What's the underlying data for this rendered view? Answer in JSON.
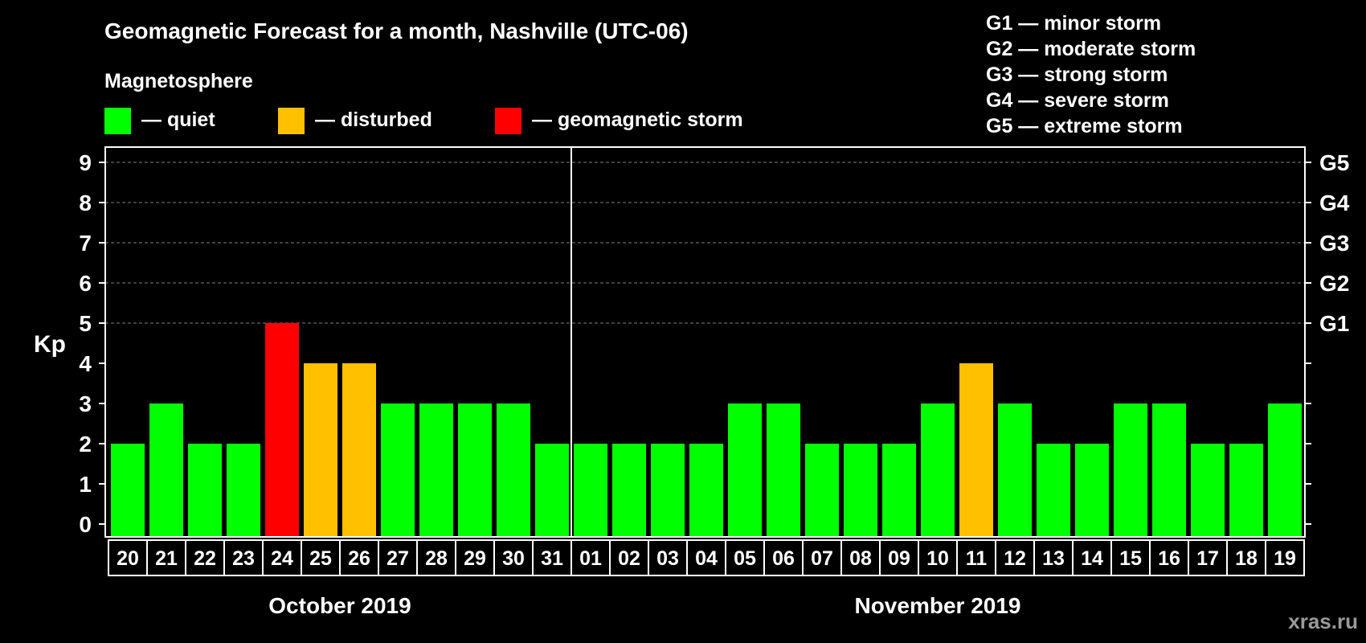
{
  "chart_data": {
    "type": "bar",
    "title": "Geomagnetic Forecast for a month, Nashville (UTC-06)",
    "legend": {
      "heading": "Magnetosphere",
      "placement": "top-left",
      "items": [
        {
          "label": "— quiet",
          "color": "#00ff00"
        },
        {
          "label": "— disturbed",
          "color": "#ffc000"
        },
        {
          "label": "— geomagnetic storm",
          "color": "#ff0000"
        }
      ]
    },
    "storm_scale": [
      "G1 — minor storm",
      "G2 — moderate storm",
      "G3 — strong storm",
      "G4 — severe storm",
      "G5 — extreme storm"
    ],
    "ylabel": "Kp",
    "ylim": [
      0,
      9
    ],
    "yticks": [
      "0",
      "1",
      "2",
      "3",
      "4",
      "5",
      "6",
      "7",
      "8",
      "9"
    ],
    "right_ticks": [
      {
        "value": 5,
        "label": "G1"
      },
      {
        "value": 6,
        "label": "G2"
      },
      {
        "value": 7,
        "label": "G3"
      },
      {
        "value": 8,
        "label": "G4"
      },
      {
        "value": 9,
        "label": "G5"
      }
    ],
    "grid": "dashed at 5–9",
    "categories": [
      "20",
      "21",
      "22",
      "23",
      "24",
      "25",
      "26",
      "27",
      "28",
      "29",
      "30",
      "31",
      "01",
      "02",
      "03",
      "04",
      "05",
      "06",
      "07",
      "08",
      "09",
      "10",
      "11",
      "12",
      "13",
      "14",
      "15",
      "16",
      "17",
      "18",
      "19"
    ],
    "values": [
      2,
      3,
      2,
      2,
      5,
      4,
      4,
      3,
      3,
      3,
      3,
      2,
      2,
      2,
      2,
      2,
      3,
      3,
      2,
      2,
      2,
      3,
      4,
      3,
      2,
      2,
      3,
      3,
      2,
      2,
      3
    ],
    "months": [
      {
        "label": "October 2019",
        "span": [
          0,
          11
        ]
      },
      {
        "label": "November 2019",
        "span": [
          12,
          30
        ]
      }
    ],
    "colors": {
      "quiet": "#00ff00",
      "disturbed": "#ffc000",
      "storm": "#ff0000",
      "background": "#000000",
      "axis": "#ffffff",
      "grid": "#808080"
    }
  },
  "watermark": "xras.ru"
}
